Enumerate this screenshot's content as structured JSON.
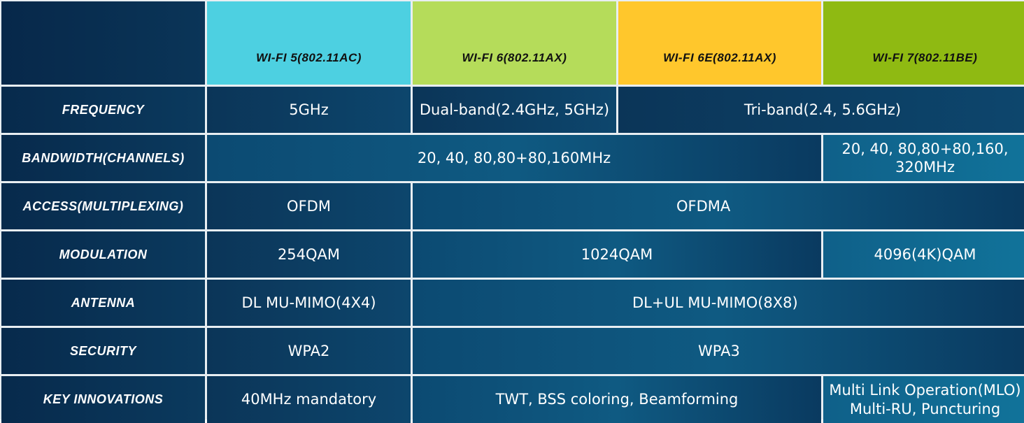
{
  "colors": {
    "wifi5": "#4dd0e1",
    "wifi6": "#b5dc5a",
    "wifi6e": "#ffc72c",
    "wifi7": "#8fba12"
  },
  "headers": [
    "Wi-Fi 5(802.11AC)",
    "Wi-Fi 6(802.11AX)",
    "Wi-Fi 6E(802.11AX)",
    "Wi-Fi 7(802.11BE)"
  ],
  "rows": {
    "frequency": {
      "label": "Frequency",
      "wifi5": "5GHz",
      "wifi6": "Dual-band(2.4GHz, 5GHz)",
      "wifi6e_7": "Tri-band(2.4, 5.6GHz)"
    },
    "bandwidth": {
      "label": "Bandwidth(Channels)",
      "wifi5_6e": "20, 40, 80,80+80,160MHz",
      "wifi7": "20, 40, 80,80+80,160, 320MHz"
    },
    "access": {
      "label": "Access(Multiplexing)",
      "wifi5": "OFDM",
      "wifi6_7": "OFDMA"
    },
    "modulation": {
      "label": "Modulation",
      "wifi5": "254QAM",
      "wifi6_6e": "1024QAM",
      "wifi7": "4096(4K)QAM"
    },
    "antenna": {
      "label": "Antenna",
      "wifi5": "DL MU-MIMO(4X4)",
      "wifi6_7": "DL+UL MU-MIMO(8X8)"
    },
    "security": {
      "label": "Security",
      "wifi5": "WPA2",
      "wifi6_7": "WPA3"
    },
    "innovations": {
      "label": "Key Innovations",
      "wifi5": "40MHz mandatory",
      "wifi6_6e": "TWT, BSS coloring, Beamforming",
      "wifi7_line1": "Multi Link Operation(MLO)",
      "wifi7_line2": "Multi-RU, Puncturing"
    }
  }
}
